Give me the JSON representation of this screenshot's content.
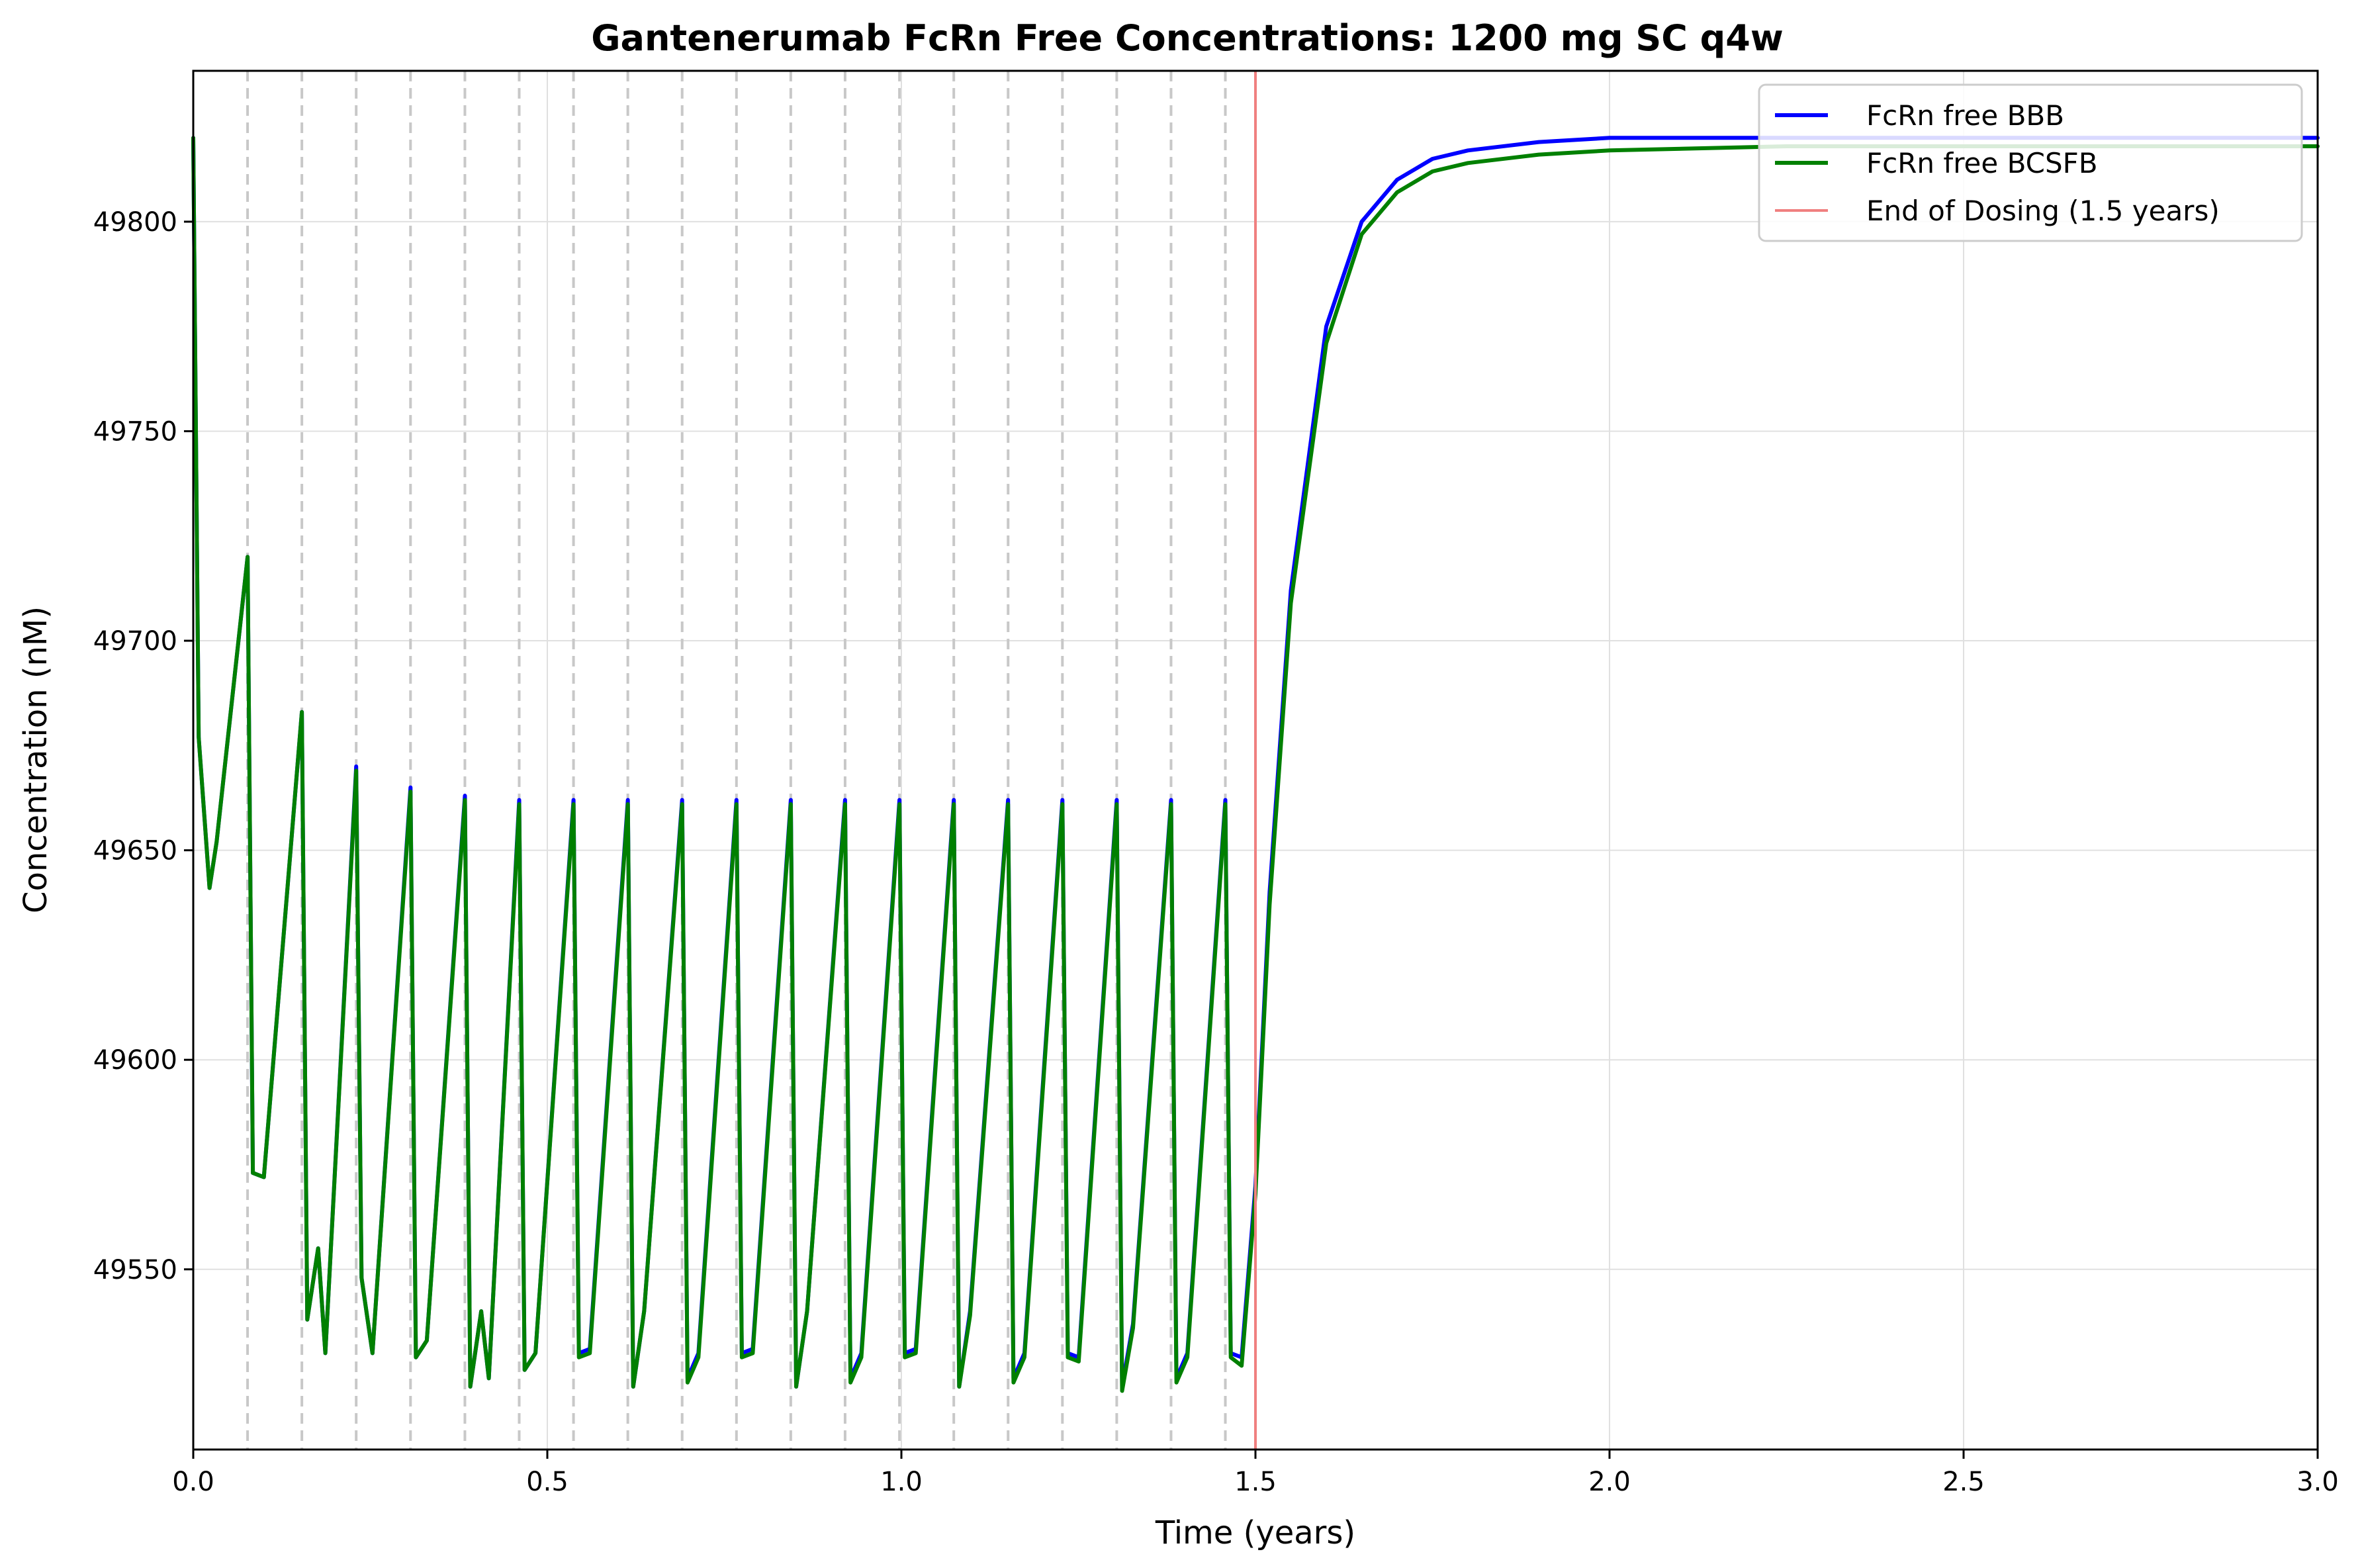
{
  "chart_data": {
    "type": "line",
    "title": "Gantenerumab FcRn Free Concentrations: 1200 mg SC q4w",
    "xlabel": "Time (years)",
    "ylabel": "Concentration (nM)",
    "xlim": [
      0,
      3.0
    ],
    "ylim": [
      49507,
      49836
    ],
    "x_ticks": [
      0.0,
      0.5,
      1.0,
      1.5,
      2.0,
      2.5,
      3.0
    ],
    "x_tick_labels": [
      "0.0",
      "0.5",
      "1.0",
      "1.5",
      "2.0",
      "2.5",
      "3.0"
    ],
    "y_ticks": [
      49550,
      49600,
      49650,
      49700,
      49750,
      49800
    ],
    "y_tick_labels": [
      "49550",
      "49600",
      "49650",
      "49700",
      "49750",
      "49800"
    ],
    "grid": true,
    "legend_position": "top-right",
    "dose_times": [
      0.0767,
      0.1534,
      0.2301,
      0.3068,
      0.3836,
      0.4603,
      0.537,
      0.6137,
      0.6904,
      0.7671,
      0.8438,
      0.9205,
      0.9973,
      1.074,
      1.1507,
      1.2274,
      1.3041,
      1.3808,
      1.4575
    ],
    "end_of_dosing": 1.5,
    "series": [
      {
        "name": "FcRn free BBB",
        "color": "#0000ff",
        "x": [
          0.0,
          0.0077,
          0.023,
          0.033,
          0.0767,
          0.0842,
          0.0997,
          0.1534,
          0.161,
          0.1764,
          0.1865,
          0.2301,
          0.2377,
          0.2531,
          0.3068,
          0.3144,
          0.3298,
          0.3836,
          0.3912,
          0.4066,
          0.4174,
          0.4603,
          0.4679,
          0.4833,
          0.537,
          0.5446,
          0.56,
          0.6137,
          0.6213,
          0.6367,
          0.6904,
          0.698,
          0.7134,
          0.7671,
          0.7747,
          0.7901,
          0.8438,
          0.8514,
          0.8668,
          0.9205,
          0.9281,
          0.9435,
          0.9973,
          1.0049,
          1.0203,
          1.074,
          1.0816,
          1.097,
          1.1507,
          1.1583,
          1.1737,
          1.2274,
          1.235,
          1.2504,
          1.3041,
          1.3117,
          1.3271,
          1.3808,
          1.3884,
          1.4038,
          1.4575,
          1.4651,
          1.4805,
          1.5,
          1.52,
          1.55,
          1.6,
          1.65,
          1.7,
          1.75,
          1.8,
          1.9,
          2.0,
          2.25,
          2.5,
          3.0
        ],
        "y": [
          49820,
          49677,
          49641,
          49652,
          49720,
          49573,
          49572,
          49683,
          49538,
          49555,
          49530,
          49670,
          49548,
          49530,
          49665,
          49529,
          49533,
          49663,
          49522,
          49540,
          49524,
          49662,
          49526,
          49530,
          49662,
          49530,
          49531,
          49662,
          49522,
          49540,
          49662,
          49524,
          49530,
          49662,
          49530,
          49531,
          49662,
          49522,
          49540,
          49662,
          49524,
          49530,
          49662,
          49530,
          49531,
          49662,
          49522,
          49540,
          49662,
          49524,
          49530,
          49662,
          49530,
          49529,
          49662,
          49522,
          49537,
          49662,
          49524,
          49530,
          49662,
          49530,
          49529,
          49570,
          49640,
          49712,
          49775,
          49800,
          49810,
          49815,
          49817,
          49819,
          49820,
          49820,
          49820,
          49820
        ]
      },
      {
        "name": "FcRn free BCSFB",
        "color": "#008000",
        "x": [
          0.0,
          0.0077,
          0.023,
          0.033,
          0.0767,
          0.0842,
          0.0997,
          0.1534,
          0.161,
          0.1764,
          0.1865,
          0.2301,
          0.2377,
          0.2531,
          0.3068,
          0.3144,
          0.3298,
          0.3836,
          0.3912,
          0.4066,
          0.4174,
          0.4603,
          0.4679,
          0.4833,
          0.537,
          0.5446,
          0.56,
          0.6137,
          0.6213,
          0.6367,
          0.6904,
          0.698,
          0.7134,
          0.7671,
          0.7747,
          0.7901,
          0.8438,
          0.8514,
          0.8668,
          0.9205,
          0.9281,
          0.9435,
          0.9973,
          1.0049,
          1.0203,
          1.074,
          1.0816,
          1.097,
          1.1507,
          1.1583,
          1.1737,
          1.2274,
          1.235,
          1.2504,
          1.3041,
          1.3117,
          1.3271,
          1.3808,
          1.3884,
          1.4038,
          1.4575,
          1.4651,
          1.4805,
          1.5,
          1.52,
          1.55,
          1.6,
          1.65,
          1.7,
          1.75,
          1.8,
          1.9,
          2.0,
          2.25,
          2.5,
          3.0
        ],
        "y": [
          49820,
          49677,
          49641,
          49652,
          49720,
          49573,
          49572,
          49683,
          49538,
          49555,
          49530,
          49669,
          49548,
          49530,
          49664,
          49529,
          49533,
          49662,
          49522,
          49540,
          49524,
          49661,
          49526,
          49530,
          49661,
          49529,
          49530,
          49661,
          49522,
          49540,
          49661,
          49523,
          49529,
          49661,
          49529,
          49530,
          49661,
          49522,
          49540,
          49661,
          49523,
          49529,
          49661,
          49529,
          49530,
          49661,
          49522,
          49539,
          49661,
          49523,
          49529,
          49661,
          49529,
          49528,
          49661,
          49521,
          49536,
          49661,
          49523,
          49529,
          49661,
          49529,
          49527,
          49568,
          49637,
          49709,
          49771,
          49797,
          49807,
          49812,
          49814,
          49816,
          49817,
          49818,
          49818,
          49818
        ]
      },
      {
        "name": "End of Dosing (1.5 years)",
        "color": "#f08080"
      }
    ]
  }
}
